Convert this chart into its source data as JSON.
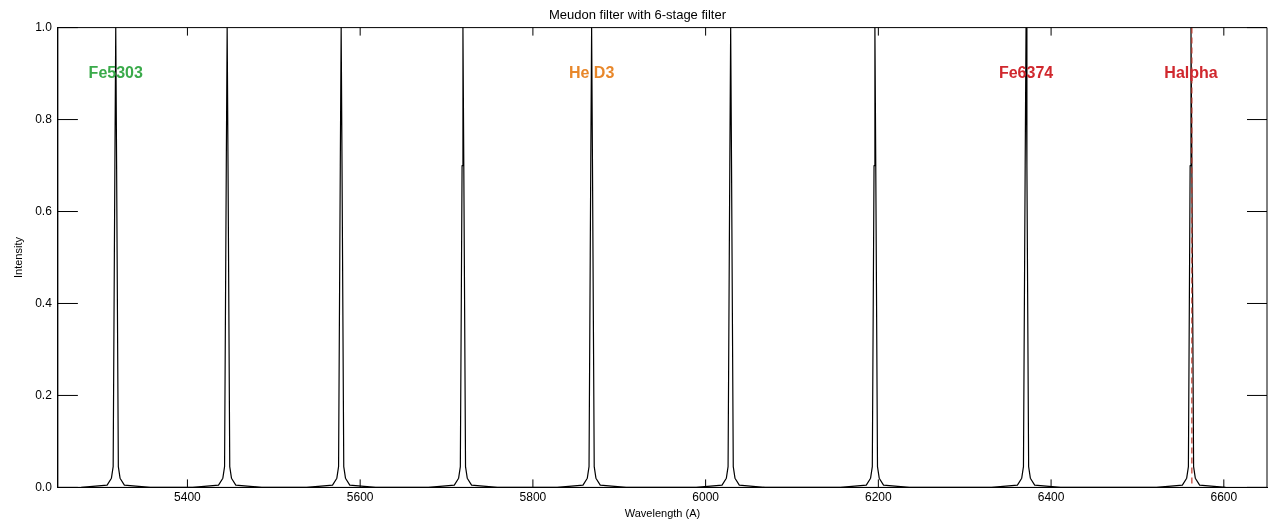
{
  "chart_data": {
    "type": "line",
    "title": "Meudon filter with 6-stage filter",
    "xlabel": "Wavelength (A)",
    "ylabel": "Intensity",
    "x": [
      5277,
      5307,
      5312,
      5314,
      5316,
      5317,
      5318,
      5320,
      5322,
      5327,
      5357,
      5406,
      5436,
      5441,
      5443,
      5445,
      5446,
      5447,
      5449,
      5451,
      5456,
      5486,
      5538,
      5568,
      5573,
      5575,
      5577,
      5578,
      5579,
      5581,
      5583,
      5588,
      5618,
      5679,
      5709,
      5714,
      5716,
      5718,
      5719,
      5720,
      5722,
      5724,
      5729,
      5759,
      5828,
      5858,
      5863,
      5865,
      5867,
      5868,
      5869,
      5871,
      5873,
      5878,
      5908,
      5989,
      6019,
      6024,
      6026,
      6028,
      6029,
      6030,
      6032,
      6034,
      6039,
      6069,
      6156,
      6186,
      6191,
      6193,
      6195,
      6196,
      6197,
      6199,
      6201,
      6206,
      6236,
      6331,
      6361,
      6366,
      6368,
      6370,
      6371,
      6372,
      6374,
      6376,
      6381,
      6411,
      6522,
      6552,
      6557,
      6559,
      6561,
      6562,
      6563,
      6565,
      6567,
      6572,
      6602
    ],
    "series": [
      {
        "color": "#000000",
        "values": [
          0,
          0.005,
          0.02,
          0.045,
          0.7,
          1,
          0.7,
          0.045,
          0.02,
          0.005,
          0,
          0,
          0.005,
          0.02,
          0.045,
          0.7,
          1,
          0.7,
          0.045,
          0.02,
          0.005,
          0,
          0,
          0.005,
          0.02,
          0.045,
          0.7,
          1,
          0.7,
          0.045,
          0.02,
          0.005,
          0,
          0,
          0.005,
          0.02,
          0.045,
          0.7,
          1,
          0.7,
          0.045,
          0.02,
          0.005,
          0,
          0,
          0.005,
          0.02,
          0.045,
          0.7,
          1,
          0.7,
          0.045,
          0.02,
          0.005,
          0,
          0,
          0.005,
          0.02,
          0.045,
          0.7,
          1,
          0.7,
          0.045,
          0.02,
          0.005,
          0,
          0,
          0.005,
          0.02,
          0.045,
          0.7,
          1,
          0.7,
          0.045,
          0.02,
          0.005,
          0,
          0,
          0.005,
          0.02,
          0.045,
          0.7,
          1,
          0.7,
          0.045,
          0.02,
          0.005,
          0,
          0,
          0.005,
          0.02,
          0.045,
          0.7,
          1,
          0.7,
          0.045,
          0.02,
          0.005,
          0
        ]
      }
    ],
    "xlim": [
      5250,
      6650
    ],
    "xticks": [
      5400,
      5600,
      5800,
      6000,
      6200,
      6400,
      6600
    ],
    "ylim": [
      0,
      1
    ],
    "yticks": [
      {
        "value": 0,
        "label": "0.0"
      },
      {
        "value": 0.2,
        "label": "0.2"
      },
      {
        "value": 0.4,
        "label": "0.4"
      },
      {
        "value": 0.6,
        "label": "0.6"
      },
      {
        "value": 0.8,
        "label": "0.8"
      },
      {
        "value": 1,
        "label": "1.0"
      }
    ],
    "ref_lines": [
      {
        "axis": "x",
        "value": 6563,
        "color": "#c0392b",
        "line_style": "dashed"
      }
    ],
    "annotations": [
      {
        "text": "Fe5303",
        "x": 5317,
        "y": 0.9
      },
      {
        "text": "He D3",
        "x": 5868,
        "y": 0.9
      },
      {
        "text": "Fe6374",
        "x": 6371,
        "y": 0.9
      },
      {
        "text": "Halpha",
        "x": 6562,
        "y": 0.9
      }
    ],
    "grid": false,
    "legend": false,
    "marker": "none",
    "line_style": "solid"
  }
}
